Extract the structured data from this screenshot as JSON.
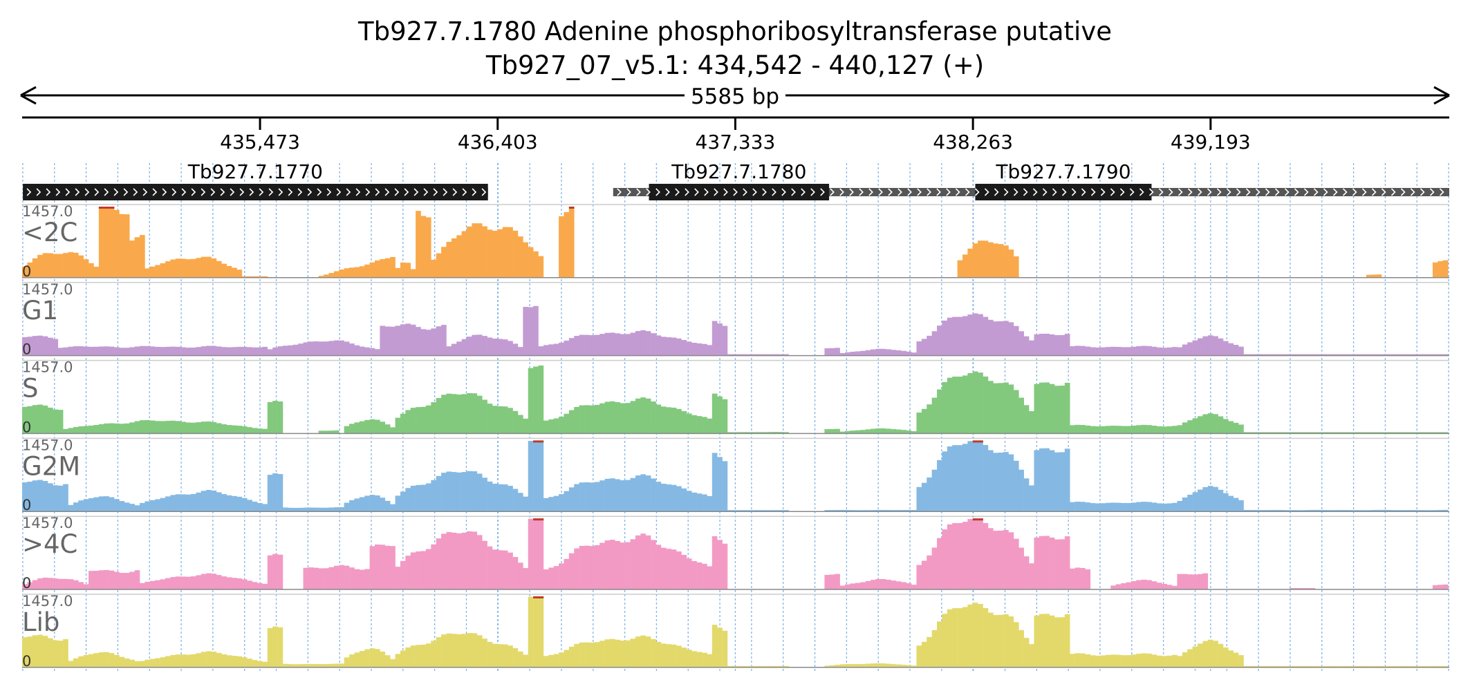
{
  "header": {
    "title": "Tb927.7.1780  Adenine phosphoribosyltransferase  putative",
    "locus": "Tb927_07_v5.1: 434,542 - 440,127 (+)",
    "span_label": "5585 bp"
  },
  "colors": {
    "axis": "#000000",
    "grid": "#7fb4e8",
    "label_gray": "#666666",
    "clip": "#c0392b",
    "gene_cds": "#1a1a1a",
    "gene_utr": "#555555",
    "strand_mark": "#ffffff"
  },
  "chart_data": {
    "type": "area",
    "region": {
      "chrom": "Tb927_07_v5.1",
      "start": 434542,
      "end": 440127,
      "strand": "+"
    },
    "ticks": [
      {
        "pos": 435473,
        "label": "435,473"
      },
      {
        "pos": 436403,
        "label": "436,403"
      },
      {
        "pos": 437333,
        "label": "437,333"
      },
      {
        "pos": 438263,
        "label": "438,263"
      },
      {
        "pos": 439193,
        "label": "439,193"
      }
    ],
    "genes": [
      {
        "name": "Tb927.7.1770",
        "start": 434545,
        "end": 436365,
        "cds": [
          [
            434545,
            436365
          ]
        ]
      },
      {
        "name": "Tb927.7.1780",
        "start": 436855,
        "end": 438200,
        "cds": [
          [
            436995,
            437700
          ]
        ]
      },
      {
        "name": "Tb927.7.1790",
        "start": 438180,
        "end": 440127,
        "cds": [
          [
            438272,
            438962
          ]
        ]
      }
    ],
    "y_max_label": "1457.0",
    "y_min_label": "0",
    "ylim": [
      0,
      1457
    ],
    "bin_bp": 20,
    "tracks": [
      {
        "name": "<2C",
        "color": "#f9a94b",
        "segments": [
          {
            "start": 434542,
            "end": 434840,
            "shape": "hump",
            "peak": 550
          },
          {
            "start": 434840,
            "end": 434960,
            "shape": "flat",
            "peak": 1457
          },
          {
            "start": 434960,
            "end": 435020,
            "shape": "flat",
            "peak": 800
          },
          {
            "start": 435020,
            "end": 435400,
            "shape": "hump",
            "peak": 420
          },
          {
            "start": 435400,
            "end": 435500,
            "shape": "hump",
            "peak": 20
          },
          {
            "start": 435700,
            "end": 436000,
            "shape": "rise",
            "peak": 440
          },
          {
            "start": 436000,
            "end": 436080,
            "shape": "hump",
            "peak": 300
          },
          {
            "start": 436080,
            "end": 436150,
            "shape": "flat",
            "peak": 1400
          },
          {
            "start": 436150,
            "end": 436580,
            "shape": "hump",
            "peak": 1100
          },
          {
            "start": 436640,
            "end": 436700,
            "shape": "flat",
            "peak": 1400
          },
          {
            "start": 438200,
            "end": 438450,
            "shape": "hump",
            "peak": 800
          },
          {
            "start": 439800,
            "end": 439870,
            "shape": "flat",
            "peak": 60
          },
          {
            "start": 440070,
            "end": 440127,
            "shape": "flat",
            "peak": 320
          }
        ]
      },
      {
        "name": "G1",
        "color": "#c39bd3",
        "segments": [
          {
            "start": 434542,
            "end": 434680,
            "shape": "flat",
            "peak": 380
          },
          {
            "start": 434680,
            "end": 435500,
            "shape": "flat",
            "peak": 180
          },
          {
            "start": 435500,
            "end": 435950,
            "shape": "hump",
            "peak": 300
          },
          {
            "start": 435950,
            "end": 436200,
            "shape": "flat",
            "peak": 600
          },
          {
            "start": 436200,
            "end": 436500,
            "shape": "hump",
            "peak": 420
          },
          {
            "start": 436500,
            "end": 436560,
            "shape": "flat",
            "peak": 1000
          },
          {
            "start": 436560,
            "end": 437250,
            "shape": "hump",
            "peak": 480
          },
          {
            "start": 437250,
            "end": 437310,
            "shape": "flat",
            "peak": 650
          },
          {
            "start": 437310,
            "end": 437550,
            "shape": "flat",
            "peak": 20
          },
          {
            "start": 437680,
            "end": 437750,
            "shape": "flat",
            "peak": 150
          },
          {
            "start": 437750,
            "end": 438050,
            "shape": "hump",
            "peak": 130
          },
          {
            "start": 438050,
            "end": 438500,
            "shape": "hump",
            "peak": 850
          },
          {
            "start": 438500,
            "end": 438650,
            "shape": "flat",
            "peak": 450
          },
          {
            "start": 438650,
            "end": 439060,
            "shape": "flat",
            "peak": 180
          },
          {
            "start": 439060,
            "end": 439330,
            "shape": "hump",
            "peak": 380
          },
          {
            "start": 439330,
            "end": 440127,
            "shape": "flat",
            "peak": 12
          }
        ]
      },
      {
        "name": "S",
        "color": "#82c97e",
        "segments": [
          {
            "start": 434542,
            "end": 434700,
            "shape": "flat",
            "peak": 550
          },
          {
            "start": 434700,
            "end": 435500,
            "shape": "hump",
            "peak": 260
          },
          {
            "start": 435500,
            "end": 435560,
            "shape": "flat",
            "peak": 600
          },
          {
            "start": 435700,
            "end": 435780,
            "shape": "flat",
            "peak": 60
          },
          {
            "start": 435800,
            "end": 436000,
            "shape": "hump",
            "peak": 300
          },
          {
            "start": 436000,
            "end": 436520,
            "shape": "hump",
            "peak": 800
          },
          {
            "start": 436520,
            "end": 436580,
            "shape": "flat",
            "peak": 1350
          },
          {
            "start": 436580,
            "end": 437250,
            "shape": "hump",
            "peak": 680
          },
          {
            "start": 437250,
            "end": 437310,
            "shape": "flat",
            "peak": 750
          },
          {
            "start": 437310,
            "end": 437550,
            "shape": "flat",
            "peak": 30
          },
          {
            "start": 437680,
            "end": 437750,
            "shape": "flat",
            "peak": 90
          },
          {
            "start": 437750,
            "end": 438050,
            "shape": "hump",
            "peak": 100
          },
          {
            "start": 438050,
            "end": 438500,
            "shape": "hump",
            "peak": 1250
          },
          {
            "start": 438500,
            "end": 438650,
            "shape": "flat",
            "peak": 1050
          },
          {
            "start": 438650,
            "end": 439060,
            "shape": "flat",
            "peak": 160
          },
          {
            "start": 439060,
            "end": 439330,
            "shape": "hump",
            "peak": 380
          },
          {
            "start": 439330,
            "end": 440127,
            "shape": "flat",
            "peak": 20
          }
        ]
      },
      {
        "name": "G2M",
        "color": "#85b9e3",
        "segments": [
          {
            "start": 434542,
            "end": 434720,
            "shape": "flat",
            "peak": 600
          },
          {
            "start": 434720,
            "end": 435000,
            "shape": "hump",
            "peak": 300
          },
          {
            "start": 435000,
            "end": 435500,
            "shape": "hump",
            "peak": 400
          },
          {
            "start": 435500,
            "end": 435560,
            "shape": "flat",
            "peak": 700
          },
          {
            "start": 435560,
            "end": 435800,
            "shape": "flat",
            "peak": 80
          },
          {
            "start": 435800,
            "end": 436000,
            "shape": "hump",
            "peak": 350
          },
          {
            "start": 436000,
            "end": 436520,
            "shape": "hump",
            "peak": 800
          },
          {
            "start": 436520,
            "end": 436580,
            "shape": "flat",
            "peak": 1457
          },
          {
            "start": 436580,
            "end": 437250,
            "shape": "hump",
            "peak": 700
          },
          {
            "start": 437250,
            "end": 437310,
            "shape": "flat",
            "peak": 1100
          },
          {
            "start": 437310,
            "end": 437550,
            "shape": "flat",
            "peak": 25
          },
          {
            "start": 437680,
            "end": 438050,
            "shape": "flat",
            "peak": 30
          },
          {
            "start": 438050,
            "end": 438500,
            "shape": "hump",
            "peak": 1457
          },
          {
            "start": 438500,
            "end": 438650,
            "shape": "flat",
            "peak": 1300
          },
          {
            "start": 438650,
            "end": 439060,
            "shape": "flat",
            "peak": 180
          },
          {
            "start": 439060,
            "end": 439330,
            "shape": "hump",
            "peak": 480
          },
          {
            "start": 439330,
            "end": 440127,
            "shape": "flat",
            "peak": 30
          }
        ]
      },
      {
        "name": ">4C",
        "color": "#f29ac4",
        "segments": [
          {
            "start": 434542,
            "end": 434800,
            "shape": "hump",
            "peak": 250
          },
          {
            "start": 434800,
            "end": 435000,
            "shape": "flat",
            "peak": 380
          },
          {
            "start": 435000,
            "end": 435500,
            "shape": "hump",
            "peak": 300
          },
          {
            "start": 435500,
            "end": 435560,
            "shape": "flat",
            "peak": 650
          },
          {
            "start": 435650,
            "end": 435900,
            "shape": "flat",
            "peak": 450
          },
          {
            "start": 435900,
            "end": 436000,
            "shape": "flat",
            "peak": 900
          },
          {
            "start": 436000,
            "end": 436520,
            "shape": "hump",
            "peak": 1150
          },
          {
            "start": 436520,
            "end": 436580,
            "shape": "flat",
            "peak": 1457
          },
          {
            "start": 436580,
            "end": 437250,
            "shape": "hump",
            "peak": 1050
          },
          {
            "start": 437250,
            "end": 437310,
            "shape": "flat",
            "peak": 1000
          },
          {
            "start": 437680,
            "end": 437750,
            "shape": "flat",
            "peak": 300
          },
          {
            "start": 437750,
            "end": 438050,
            "shape": "hump",
            "peak": 200
          },
          {
            "start": 438050,
            "end": 438500,
            "shape": "hump",
            "peak": 1457
          },
          {
            "start": 438500,
            "end": 438650,
            "shape": "flat",
            "peak": 1100
          },
          {
            "start": 438650,
            "end": 438720,
            "shape": "flat",
            "peak": 400
          },
          {
            "start": 438800,
            "end": 439060,
            "shape": "hump",
            "peak": 180
          },
          {
            "start": 439060,
            "end": 439180,
            "shape": "flat",
            "peak": 310
          },
          {
            "start": 439500,
            "end": 439600,
            "shape": "flat",
            "peak": 25
          },
          {
            "start": 440070,
            "end": 440127,
            "shape": "flat",
            "peak": 90
          }
        ]
      },
      {
        "name": "Lib",
        "color": "#e3d96b",
        "segments": [
          {
            "start": 434542,
            "end": 434720,
            "shape": "flat",
            "peak": 620
          },
          {
            "start": 434720,
            "end": 435000,
            "shape": "hump",
            "peak": 300
          },
          {
            "start": 435000,
            "end": 435500,
            "shape": "hump",
            "peak": 300
          },
          {
            "start": 435500,
            "end": 435560,
            "shape": "flat",
            "peak": 750
          },
          {
            "start": 435560,
            "end": 435800,
            "shape": "flat",
            "peak": 70
          },
          {
            "start": 435800,
            "end": 436000,
            "shape": "hump",
            "peak": 400
          },
          {
            "start": 436000,
            "end": 436520,
            "shape": "hump",
            "peak": 680
          },
          {
            "start": 436520,
            "end": 436580,
            "shape": "flat",
            "peak": 1457
          },
          {
            "start": 436580,
            "end": 437250,
            "shape": "hump",
            "peak": 600
          },
          {
            "start": 437250,
            "end": 437310,
            "shape": "flat",
            "peak": 800
          },
          {
            "start": 437310,
            "end": 437550,
            "shape": "flat",
            "peak": 25
          },
          {
            "start": 437680,
            "end": 438050,
            "shape": "hump",
            "peak": 80
          },
          {
            "start": 438050,
            "end": 438500,
            "shape": "hump",
            "peak": 1300
          },
          {
            "start": 438500,
            "end": 438650,
            "shape": "flat",
            "peak": 1100
          },
          {
            "start": 438650,
            "end": 439060,
            "shape": "flat",
            "peak": 260
          },
          {
            "start": 439060,
            "end": 439330,
            "shape": "hump",
            "peak": 520
          },
          {
            "start": 439330,
            "end": 440127,
            "shape": "flat",
            "peak": 20
          }
        ]
      }
    ]
  }
}
